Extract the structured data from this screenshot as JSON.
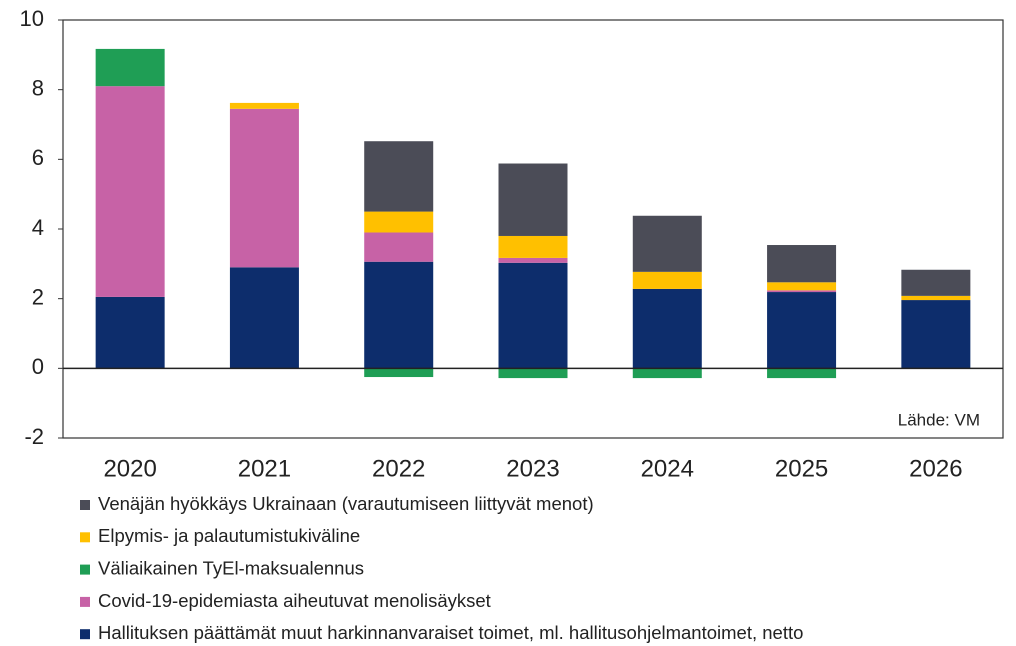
{
  "chart_data": {
    "type": "bar",
    "stacked": true,
    "categories": [
      "2020",
      "2021",
      "2022",
      "2023",
      "2024",
      "2025",
      "2026"
    ],
    "series": [
      {
        "name": "Venäjän hyökkäys Ukrainaan (varautumiseen liittyvät menot)",
        "color": "#4b4c57",
        "values": [
          0,
          0,
          2.02,
          2.08,
          1.61,
          1.07,
          0.75
        ]
      },
      {
        "name": "Elpymis- ja palautumistukiväline",
        "color": "#ffc000",
        "values": [
          0,
          0.17,
          0.6,
          0.63,
          0.49,
          0.23,
          0.12
        ]
      },
      {
        "name": "Väliaikainen TyEl-maksualennus",
        "color": "#1f9e55",
        "values": [
          1.07,
          0,
          -0.25,
          -0.28,
          -0.28,
          -0.28,
          0
        ]
      },
      {
        "name": "Covid-19-epidemiasta aiheutuvat menolisäykset",
        "color": "#c762a6",
        "values": [
          6.05,
          4.55,
          0.84,
          0.14,
          0,
          0.05,
          0
        ]
      },
      {
        "name": "Hallituksen päättämät muut harkinnanvaraiset toimet, ml. hallitusohjelmantoimet, netto",
        "color": "#0d2d6c",
        "values": [
          2.05,
          2.9,
          3.06,
          3.03,
          2.28,
          2.19,
          1.96
        ]
      }
    ],
    "ylim": [
      -2,
      10
    ],
    "yticks": [
      -2,
      0,
      2,
      4,
      6,
      8,
      10
    ],
    "annotation": "Lähde: VM"
  }
}
